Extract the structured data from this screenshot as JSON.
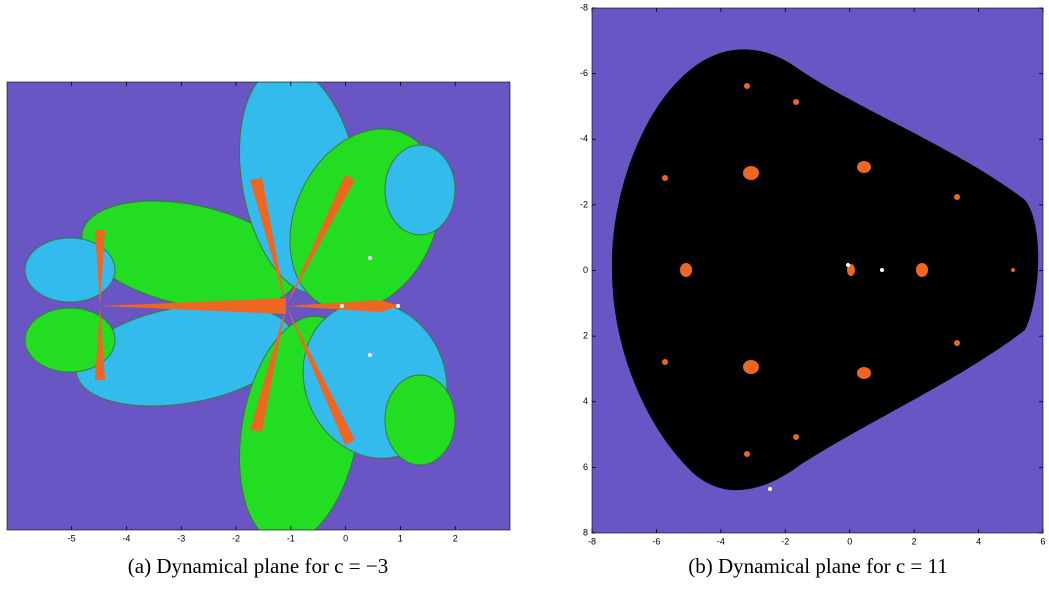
{
  "panels": [
    {
      "caption": "(a) Dynamical plane for c = −3",
      "xlim": [
        -6.18,
        3.0
      ],
      "xticks": [
        -5,
        -4,
        -3,
        -2,
        -1,
        0,
        1,
        2
      ]
    },
    {
      "caption": "(b) Dynamical plane for c = 11",
      "xlim": [
        -8,
        6
      ],
      "xticks": [
        -8,
        -6,
        -4,
        -2,
        0,
        2,
        4,
        6
      ],
      "ylim": [
        -8,
        8
      ],
      "yticks": [
        -8,
        -6,
        -4,
        -2,
        0,
        2,
        4,
        6,
        8
      ]
    }
  ]
}
